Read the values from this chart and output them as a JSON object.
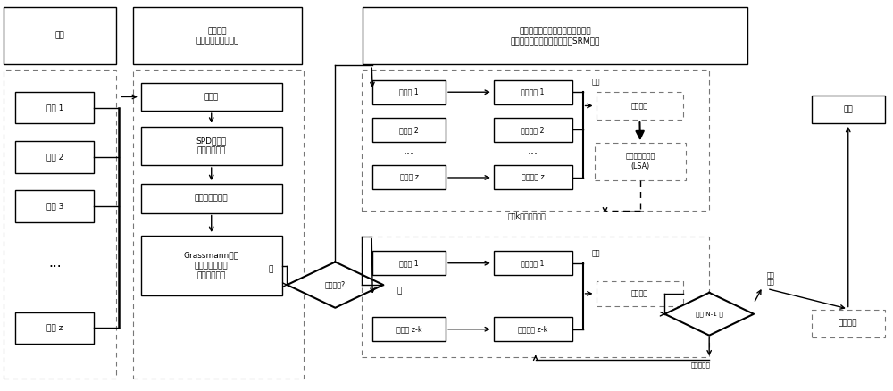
{
  "bg_color": "#ffffff",
  "font_size": 6.5,
  "font_size_small": 5.8,
  "header_labels": [
    "源域",
    "脑电信号\n边缘概率分布最小化",
    "每个源域单独训练分类器，最小化\n和目标域的条件概率分布以及SRM方程"
  ],
  "source_labels": [
    "源域 1",
    "源域 2",
    "源域 3",
    "···",
    "源域 z"
  ],
  "mid_labels": [
    "目标域",
    "SPD流形上\n分布均值对齐",
    "切空间特征提取",
    "Grassmann流形\n特征学习以最小\n化缘概率分布"
  ],
  "diamond_label": "初次迭代?",
  "yes_label": "是",
  "no_label": "否",
  "top_clf_labels": [
    "分类器 1",
    "分类器 2",
    "分类器 z"
  ],
  "top_res_labels": [
    "分类结果 1",
    "分类结果 2",
    "分类结果 z"
  ],
  "vote_label": "投票",
  "top_final_label": "分类结果",
  "lsa_label": "标签相似性分析\n(LSA)",
  "remove_label": "移除k个不好的源域",
  "bot_clf_labels": [
    "分类器 1",
    "分类器 z-k"
  ],
  "bot_res_labels": [
    "分类结果 1",
    "分类结果 z-k"
  ],
  "iter_diamond_label": "迭代 N-1 次",
  "iter_end_label": "迭代\n结束",
  "iter_not_end_label": "迭代未结束",
  "output_label": "输出",
  "predict_label": "预测标签"
}
